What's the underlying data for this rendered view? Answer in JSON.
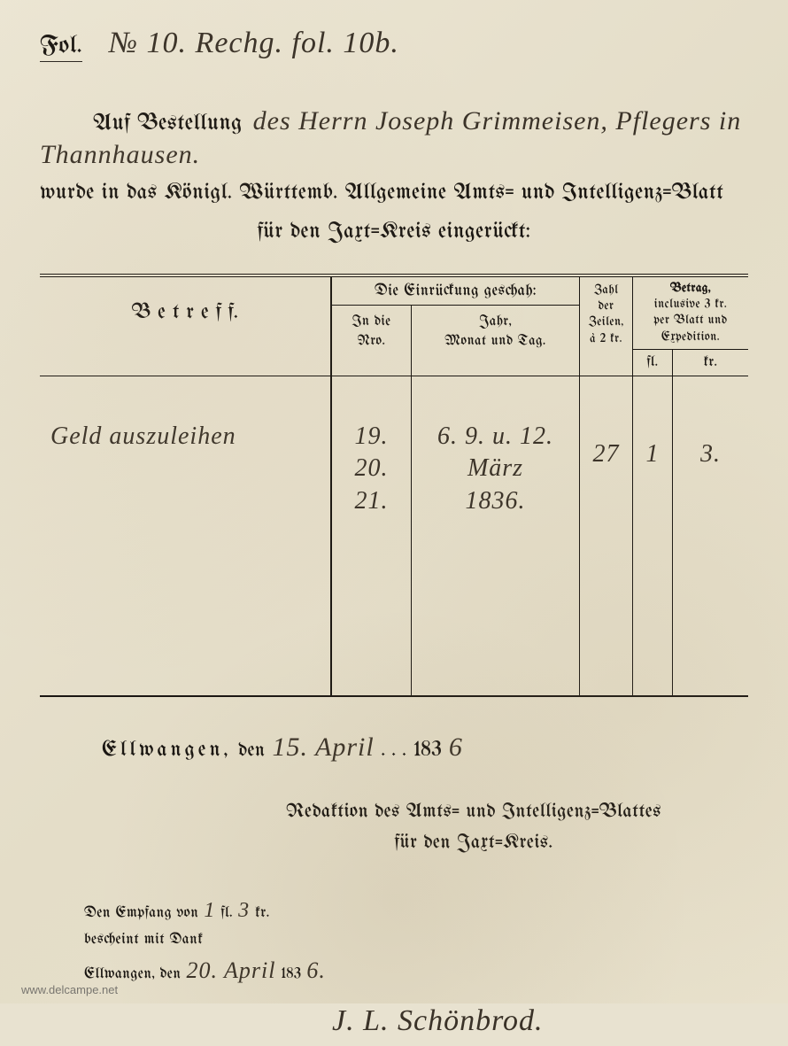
{
  "header": {
    "fol_label": "Fol.",
    "fol_handwritten": "№ 10. Rechg. fol. 10b."
  },
  "bestellung": {
    "printed_prefix": "Auf Bestellung",
    "hand_line1": "des Herrn Joseph Grimmeisen, Pflegers in",
    "hand_line2": "Thannhausen.",
    "printed_line1": "wurde in das Königl. Württemb. Allgemeine Amts= und Intelligenz=Blatt",
    "printed_line2": "für den Jaxt=Kreis eingerückt:"
  },
  "table": {
    "headers": {
      "betreff": "B e t r e f f.",
      "einrueckung_top": "Die Einrückung geschah:",
      "in_die": "In die",
      "nro": "Nro.",
      "jahr_line1": "Jahr,",
      "jahr_line2": "Monat und Tag.",
      "zahl_l1": "Zahl",
      "zahl_l2": "der",
      "zahl_l3": "Zeilen,",
      "zahl_l4": "à 2 kr.",
      "betrag_l1": "Betrag,",
      "betrag_l2": "inclusive 3 kr.",
      "betrag_l3": "per Blatt und",
      "betrag_l4": "Expedition.",
      "fl": "fl.",
      "kr": "kr."
    },
    "row": {
      "betreff": "Geld auszuleihen",
      "nro": "19. 20. 21.",
      "datum_l1": "6. 9. u. 12. März",
      "datum_l2": "1836.",
      "zeilen": "27",
      "fl_val": "1",
      "kr_val": "3."
    }
  },
  "date_section": {
    "place": "Ellwangen,",
    "den": " den ",
    "day_hand": "15. April",
    "dots": " . . . ",
    "year_print": "183",
    "year_hand": "6"
  },
  "redaktion": {
    "line1": "Redaktion des Amts= und Intelligenz=Blattes",
    "line2": "für den Jaxt=Kreis."
  },
  "receipt": {
    "line1_a": "Den Empfang von",
    "line1_fl": "1",
    "line1_b": "fl.",
    "line1_kr": "3",
    "line1_c": "kr.",
    "line2": "bescheint mit Dank",
    "line3_a": "Ellwangen, den",
    "line3_day": "20. April",
    "line3_year_p": "183",
    "line3_year_h": "6.",
    "signature": "J. L. Schönbrod."
  },
  "watermark": "www.delcampe.net"
}
